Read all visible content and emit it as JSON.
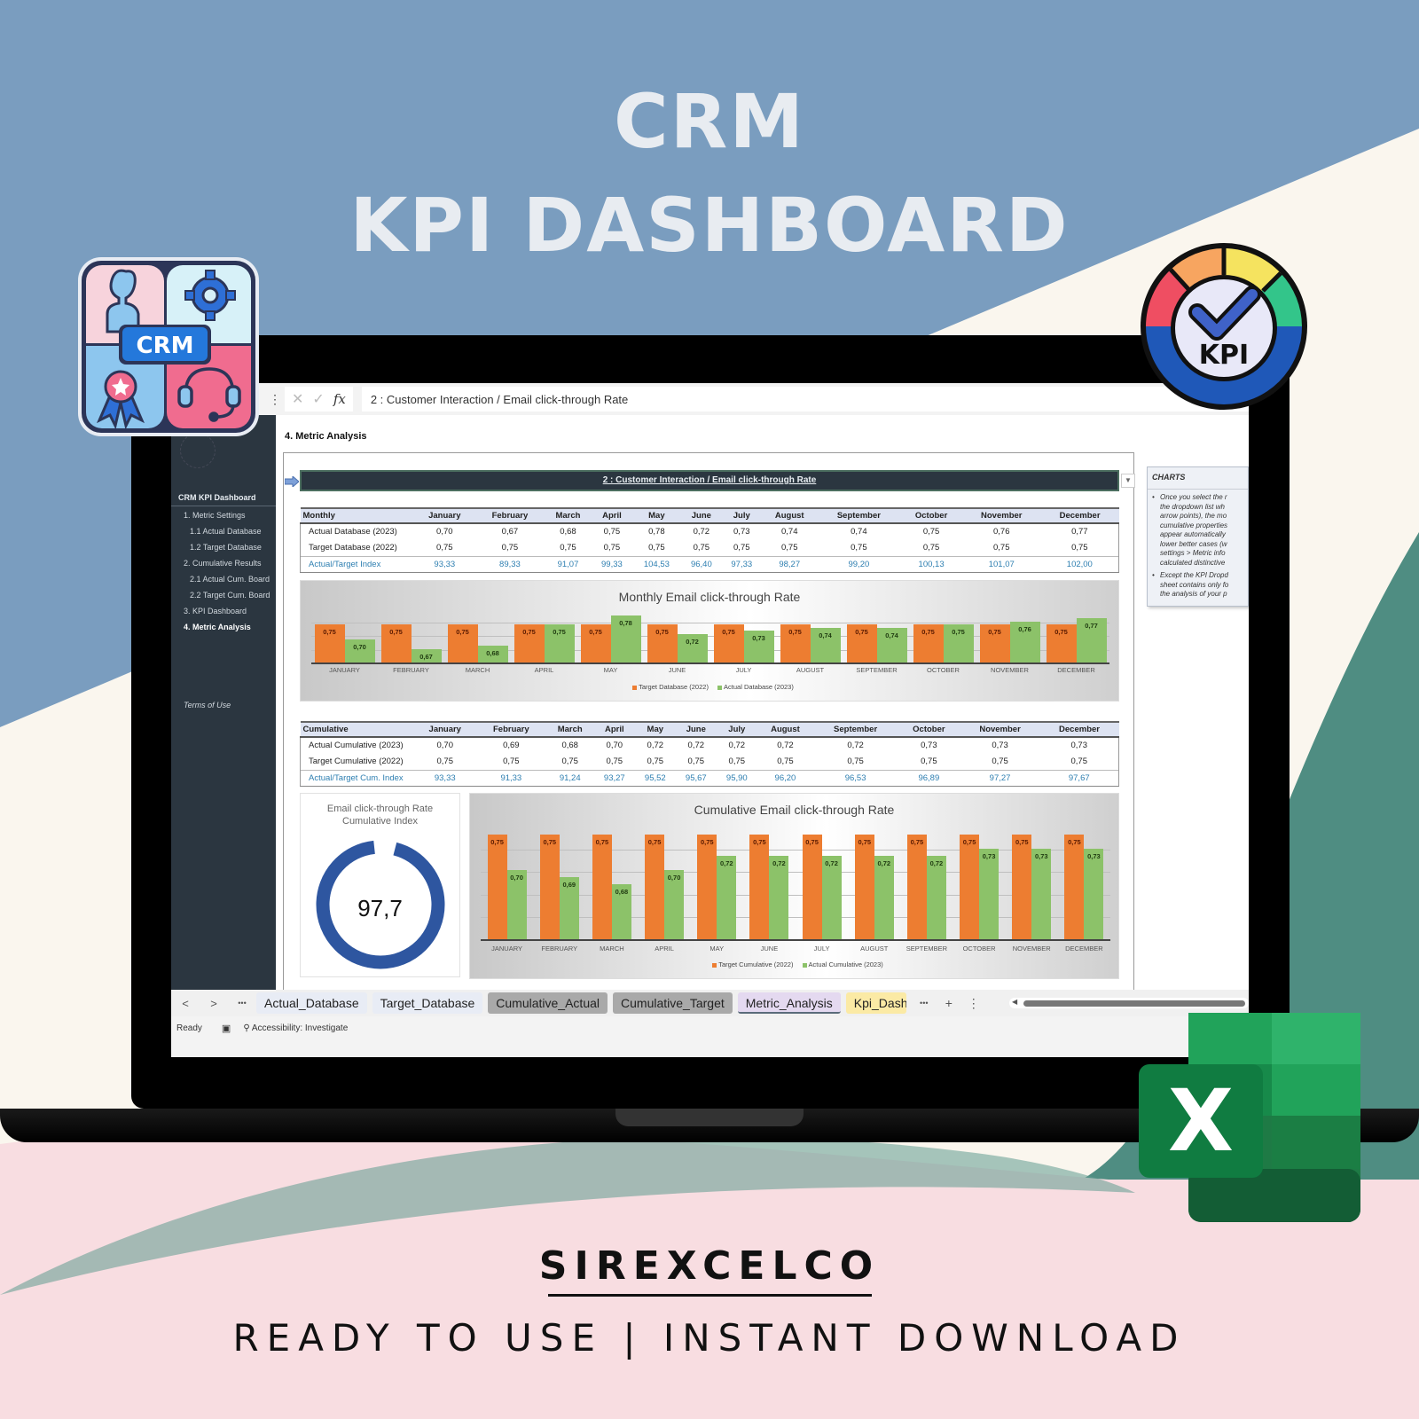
{
  "hero": {
    "line1": "CRM",
    "line2": "KPI DASHBOARD"
  },
  "badges": {
    "crm_label": "CRM",
    "kpi_label": "KPI",
    "excel_letter": "X"
  },
  "formula_bar": {
    "cancel_icon": "✕",
    "enter_icon": "✓",
    "fx_label": "fx",
    "value": "2 : Customer Interaction / Email click-through Rate"
  },
  "sidebar": {
    "title": "CRM KPI Dashboard",
    "items": [
      {
        "label": "1. Metric Settings",
        "indent": 14,
        "active": false
      },
      {
        "label": "1.1 Actual Database",
        "indent": 21,
        "active": false
      },
      {
        "label": "1.2 Target Database",
        "indent": 21,
        "active": false
      },
      {
        "label": "2. Cumulative Results",
        "indent": 14,
        "active": false
      },
      {
        "label": "2.1 Actual Cum. Board",
        "indent": 21,
        "active": false
      },
      {
        "label": "2.2 Target Cum. Board",
        "indent": 21,
        "active": false
      },
      {
        "label": "3. KPI Dashboard",
        "indent": 14,
        "active": false
      },
      {
        "label": "4. Metric Analysis",
        "indent": 14,
        "active": true
      }
    ],
    "terms": "Terms of Use"
  },
  "page": {
    "heading": "4. Metric Analysis",
    "selector_value": "2 : Customer Interaction / Email click-through Rate"
  },
  "notes": {
    "title": "CHARTS",
    "bullet1": [
      "Once you select the r",
      "the dropdown list wh",
      "arrow points), the mo",
      "cumulative properties",
      "appear automatically",
      "lower better cases (w",
      "settings > Metric info",
      "calculated distinctive"
    ],
    "bullet2": [
      "Except the KPI Dropd",
      "sheet contains only fo",
      "the analysis of your p"
    ]
  },
  "months": [
    "January",
    "February",
    "March",
    "April",
    "May",
    "June",
    "July",
    "August",
    "September",
    "October",
    "November",
    "December"
  ],
  "months_upper": [
    "JANUARY",
    "FEBRUARY",
    "MARCH",
    "APRIL",
    "MAY",
    "JUNE",
    "JULY",
    "AUGUST",
    "SEPTEMBER",
    "OCTOBER",
    "NOVEMBER",
    "DECEMBER"
  ],
  "monthly_table": {
    "header": "Monthly",
    "rows": [
      {
        "label": "Actual Database (2023)",
        "values": [
          "0,70",
          "0,67",
          "0,68",
          "0,75",
          "0,78",
          "0,72",
          "0,73",
          "0,74",
          "0,74",
          "0,75",
          "0,76",
          "0,77"
        ]
      },
      {
        "label": "Target Database (2022)",
        "values": [
          "0,75",
          "0,75",
          "0,75",
          "0,75",
          "0,75",
          "0,75",
          "0,75",
          "0,75",
          "0,75",
          "0,75",
          "0,75",
          "0,75"
        ]
      },
      {
        "label": "Actual/Target Index",
        "values": [
          "93,33",
          "89,33",
          "91,07",
          "99,33",
          "104,53",
          "96,40",
          "97,33",
          "98,27",
          "99,20",
          "100,13",
          "101,07",
          "102,00"
        ]
      }
    ]
  },
  "cumulative_table": {
    "header": "Cumulative",
    "rows": [
      {
        "label": "Actual Cumulative (2023)",
        "values": [
          "0,70",
          "0,69",
          "0,68",
          "0,70",
          "0,72",
          "0,72",
          "0,72",
          "0,72",
          "0,72",
          "0,73",
          "0,73",
          "0,73"
        ]
      },
      {
        "label": "Target Cumulative (2022)",
        "values": [
          "0,75",
          "0,75",
          "0,75",
          "0,75",
          "0,75",
          "0,75",
          "0,75",
          "0,75",
          "0,75",
          "0,75",
          "0,75",
          "0,75"
        ]
      },
      {
        "label": "Actual/Target Cum. Index",
        "values": [
          "93,33",
          "91,33",
          "91,24",
          "93,27",
          "95,52",
          "95,67",
          "95,90",
          "96,20",
          "96,53",
          "96,89",
          "97,27",
          "97,67"
        ]
      }
    ]
  },
  "chart_data": [
    {
      "type": "bar",
      "title": "Monthly Email click-through Rate",
      "categories": [
        "JANUARY",
        "FEBRUARY",
        "MARCH",
        "APRIL",
        "MAY",
        "JUNE",
        "JULY",
        "AUGUST",
        "SEPTEMBER",
        "OCTOBER",
        "NOVEMBER",
        "DECEMBER"
      ],
      "series": [
        {
          "name": "Target Database (2022)",
          "color": "#ed7d31",
          "values": [
            0.75,
            0.75,
            0.75,
            0.75,
            0.75,
            0.75,
            0.75,
            0.75,
            0.75,
            0.75,
            0.75,
            0.75
          ]
        },
        {
          "name": "Actual Database (2023)",
          "color": "#8cc269",
          "values": [
            0.7,
            0.67,
            0.68,
            0.75,
            0.78,
            0.72,
            0.73,
            0.74,
            0.74,
            0.75,
            0.76,
            0.77
          ]
        }
      ],
      "ylim": [
        0.62,
        0.8
      ],
      "legend_position": "bottom",
      "grid": true
    },
    {
      "type": "bar",
      "title": "Cumulative Email click-through Rate",
      "categories": [
        "JANUARY",
        "FEBRUARY",
        "MARCH",
        "APRIL",
        "MAY",
        "JUNE",
        "JULY",
        "AUGUST",
        "SEPTEMBER",
        "OCTOBER",
        "NOVEMBER",
        "DECEMBER"
      ],
      "series": [
        {
          "name": "Target Cumulative (2022)",
          "color": "#ed7d31",
          "values": [
            0.75,
            0.75,
            0.75,
            0.75,
            0.75,
            0.75,
            0.75,
            0.75,
            0.75,
            0.75,
            0.75,
            0.75
          ]
        },
        {
          "name": "Actual Cumulative (2023)",
          "color": "#8cc269",
          "values": [
            0.7,
            0.69,
            0.68,
            0.7,
            0.72,
            0.72,
            0.72,
            0.72,
            0.72,
            0.73,
            0.73,
            0.73
          ]
        }
      ],
      "ylim": [
        0.6,
        0.76
      ],
      "legend_position": "bottom",
      "grid": true
    },
    {
      "type": "pie",
      "title": "Email click-through Rate Cumulative Index",
      "value": 97.7,
      "display_value": "97,7",
      "max": 100,
      "color": "#2e56a0"
    }
  ],
  "donut": {
    "title_line1": "Email click-through Rate",
    "title_line2": "Cumulative Index",
    "value": "97,7",
    "percent": 97.7
  },
  "tabs": [
    {
      "label": "Actual_Database",
      "style": "blue"
    },
    {
      "label": "Target_Database",
      "style": "blue"
    },
    {
      "label": "Cumulative_Actual",
      "style": "gray"
    },
    {
      "label": "Cumulative_Target",
      "style": "gray"
    },
    {
      "label": "Metric_Analysis",
      "style": "active"
    },
    {
      "label": "Kpi_Dashboard",
      "style": "yellow"
    }
  ],
  "tab_nav": {
    "prev": "<",
    "next": ">",
    "more": "•••",
    "add": "+",
    "menu": "⋮"
  },
  "status": {
    "ready": "Ready",
    "accessibility": "Accessibility: Investigate"
  },
  "footer": {
    "brand": "SIREXCELCO",
    "tagline": "READY TO USE | INSTANT DOWNLOAD"
  }
}
